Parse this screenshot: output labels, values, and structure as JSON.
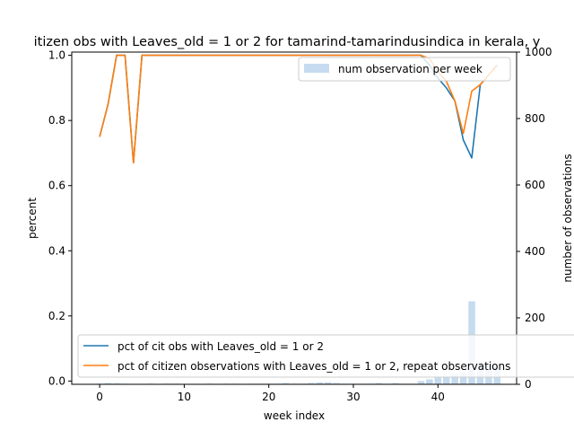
{
  "chart_data": {
    "type": "line",
    "title": "itizen obs with Leaves_old = 1 or 2 for tamarind-tamarindusindica in kerala, y",
    "xlabel": "week index",
    "ylabel": "percent",
    "y2label": "number of observations",
    "xlim": [
      -3.3,
      49.3
    ],
    "ylim": [
      -0.01,
      1.01
    ],
    "y2lim": [
      0,
      1000
    ],
    "x_ticks": [
      0,
      10,
      20,
      30,
      40
    ],
    "y_ticks": [
      0.0,
      0.2,
      0.4,
      0.6,
      0.8,
      1.0
    ],
    "y2_ticks": [
      0,
      200,
      400,
      600,
      800,
      1000
    ],
    "legend_upper": "top-right",
    "legend_lower": "lower-left",
    "series": [
      {
        "name": "pct of cit obs with Leaves_old = 1 or 2",
        "color": "#1f77b4",
        "x": [
          0,
          1,
          2,
          3,
          4,
          5,
          6,
          7,
          8,
          9,
          10,
          11,
          12,
          13,
          14,
          15,
          16,
          17,
          18,
          19,
          20,
          21,
          22,
          23,
          24,
          25,
          26,
          27,
          28,
          29,
          30,
          31,
          32,
          33,
          34,
          35,
          36,
          37,
          38,
          39,
          40,
          41,
          42,
          43,
          44,
          45,
          46,
          47
        ],
        "y": [
          0.75,
          0.85,
          1.0,
          1.0,
          0.67,
          1.0,
          1.0,
          1.0,
          1.0,
          1.0,
          1.0,
          1.0,
          1.0,
          1.0,
          1.0,
          1.0,
          1.0,
          1.0,
          1.0,
          1.0,
          1.0,
          1.0,
          1.0,
          1.0,
          1.0,
          1.0,
          1.0,
          1.0,
          1.0,
          1.0,
          1.0,
          1.0,
          1.0,
          1.0,
          1.0,
          1.0,
          1.0,
          1.0,
          1.0,
          0.97,
          0.93,
          0.9,
          0.86,
          0.74,
          0.685,
          0.91,
          0.94,
          0.97
        ]
      },
      {
        "name": "pct of citizen observations with Leaves_old = 1 or 2, repeat observations",
        "color": "#ff7f0e",
        "x": [
          0,
          1,
          2,
          3,
          4,
          5,
          6,
          7,
          8,
          9,
          10,
          11,
          12,
          13,
          14,
          15,
          16,
          17,
          18,
          19,
          20,
          21,
          22,
          23,
          24,
          25,
          26,
          27,
          28,
          29,
          30,
          31,
          32,
          33,
          34,
          35,
          36,
          37,
          38,
          39,
          40,
          41,
          42,
          43,
          44,
          45,
          46,
          47
        ],
        "y": [
          0.75,
          0.85,
          1.0,
          1.0,
          0.67,
          1.0,
          1.0,
          1.0,
          1.0,
          1.0,
          1.0,
          1.0,
          1.0,
          1.0,
          1.0,
          1.0,
          1.0,
          1.0,
          1.0,
          1.0,
          1.0,
          1.0,
          1.0,
          1.0,
          1.0,
          1.0,
          1.0,
          1.0,
          1.0,
          1.0,
          1.0,
          1.0,
          1.0,
          1.0,
          1.0,
          1.0,
          1.0,
          1.0,
          1.0,
          0.99,
          0.95,
          0.92,
          0.86,
          0.76,
          0.89,
          0.91,
          0.94,
          0.97
        ]
      }
    ],
    "bars": {
      "name": "num observation per week",
      "color": "#c6dbef",
      "x": [
        0,
        1,
        2,
        3,
        4,
        5,
        6,
        7,
        8,
        9,
        10,
        11,
        12,
        13,
        14,
        15,
        16,
        17,
        18,
        19,
        20,
        21,
        22,
        23,
        24,
        25,
        26,
        27,
        28,
        29,
        30,
        31,
        32,
        33,
        34,
        35,
        36,
        37,
        38,
        39,
        40,
        41,
        42,
        43,
        44,
        45,
        46,
        47
      ],
      "values": [
        2,
        4,
        3,
        2,
        1,
        1,
        2,
        1,
        2,
        2,
        1,
        1,
        1,
        2,
        1,
        2,
        2,
        1,
        2,
        2,
        2,
        2,
        4,
        2,
        2,
        4,
        6,
        6,
        4,
        2,
        2,
        2,
        2,
        4,
        2,
        4,
        2,
        2,
        10,
        15,
        20,
        22,
        30,
        36,
        250,
        65,
        60,
        55
      ]
    }
  }
}
